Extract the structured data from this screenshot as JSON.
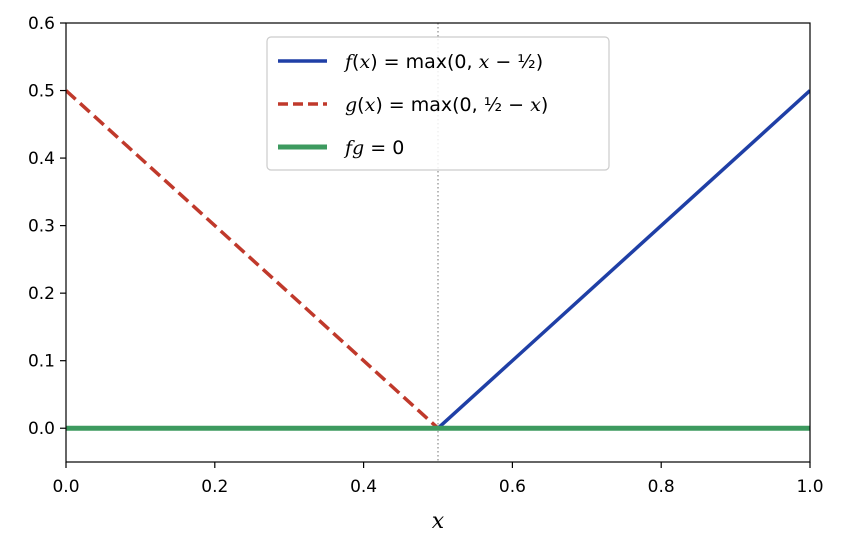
{
  "chart_data": {
    "type": "line",
    "xlabel": "x",
    "ylabel": "",
    "xlim": [
      0.0,
      1.0
    ],
    "ylim": [
      -0.05,
      0.6
    ],
    "xticks": [
      "0.0",
      "0.2",
      "0.4",
      "0.6",
      "0.8",
      "1.0"
    ],
    "yticks": [
      "0.0",
      "0.1",
      "0.2",
      "0.3",
      "0.4",
      "0.5",
      "0.6"
    ],
    "grid": false,
    "legend_position": "upper-center",
    "vline": {
      "x": 0.5,
      "style": "dotted",
      "color": "#888888"
    },
    "series": [
      {
        "name": "f(x) = max(0, x − 1/2)",
        "legend_html": "<tspan class=\"it\">f</tspan>(<tspan class=\"it\">x</tspan>) = max(0,  <tspan class=\"it\">x</tspan> − ½)",
        "color": "#1f3fa6",
        "style": "solid",
        "x": [
          0.5,
          1.0
        ],
        "y": [
          0.0,
          0.5
        ]
      },
      {
        "name": "g(x) = max(0, 1/2 − x)",
        "legend_html": "<tspan class=\"it\">g</tspan>(<tspan class=\"it\">x</tspan>) = max(0,  ½ − <tspan class=\"it\">x</tspan>)",
        "color": "#c0392b",
        "style": "dashed",
        "x": [
          0.0,
          0.5
        ],
        "y": [
          0.5,
          0.0
        ]
      },
      {
        "name": "fg = 0",
        "legend_html": "<tspan class=\"it\">fg</tspan> = 0",
        "color": "#3d9a5f",
        "style": "solid-thick",
        "x": [
          0.0,
          1.0
        ],
        "y": [
          0.0,
          0.0
        ]
      }
    ]
  }
}
